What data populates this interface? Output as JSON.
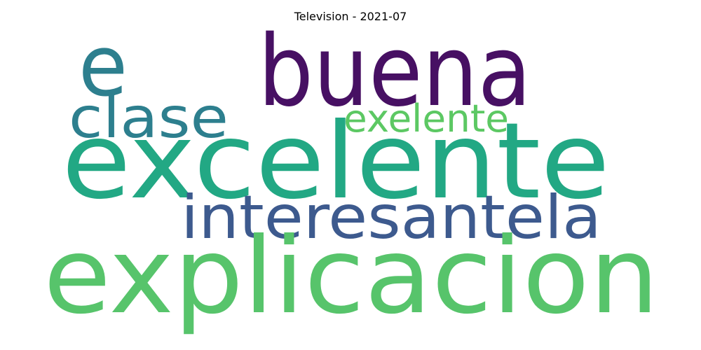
{
  "chart_data": {
    "type": "wordcloud",
    "title": "Television - 2021-07",
    "words": [
      {
        "text": "e",
        "color": "#2d7f8e"
      },
      {
        "text": "buena",
        "color": "#471063"
      },
      {
        "text": "clase",
        "color": "#2d7f8e"
      },
      {
        "text": "exelente",
        "color": "#5cc863"
      },
      {
        "text": "excelente",
        "color": "#22a884"
      },
      {
        "text": "interesantela",
        "color": "#3d5a8e"
      },
      {
        "text": "explicacion",
        "color": "#57c46b"
      }
    ]
  }
}
